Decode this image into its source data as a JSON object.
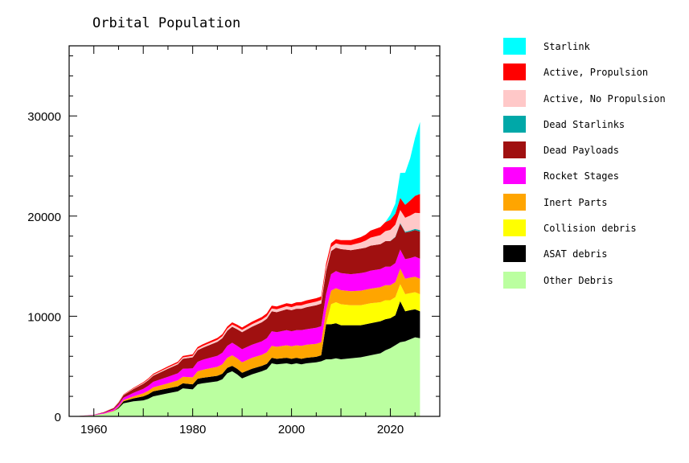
{
  "chart_data": {
    "type": "area",
    "title": "Orbital Population",
    "xlabel": "",
    "ylabel": "",
    "xlim": [
      1955,
      2030
    ],
    "ylim": [
      0,
      37000
    ],
    "x_ticks": [
      "1960",
      "1980",
      "2000",
      "2020"
    ],
    "y_ticks": [
      "0",
      "10000",
      "20000",
      "30000"
    ],
    "stacked": true,
    "legend_position": "right",
    "x": [
      1957,
      1960,
      1962,
      1964,
      1965,
      1966,
      1968,
      1970,
      1971,
      1972,
      1975,
      1977,
      1978,
      1980,
      1981,
      1982,
      1985,
      1986,
      1987,
      1988,
      1989,
      1990,
      1992,
      1994,
      1995,
      1996,
      1997,
      1999,
      2000,
      2001,
      2002,
      2003,
      2005,
      2006,
      2007,
      2008,
      2009,
      2010,
      2012,
      2014,
      2015,
      2016,
      2018,
      2019,
      2020,
      2021,
      2022,
      2023,
      2024,
      2025,
      2026
    ],
    "series": [
      {
        "name": "Other Debris",
        "color": "#bbffa0",
        "values": [
          30,
          100,
          250,
          500,
          800,
          1300,
          1500,
          1600,
          1750,
          2000,
          2300,
          2500,
          2800,
          2700,
          3200,
          3300,
          3500,
          3700,
          4300,
          4500,
          4200,
          3800,
          4200,
          4500,
          4700,
          5300,
          5200,
          5300,
          5200,
          5300,
          5200,
          5300,
          5400,
          5500,
          5700,
          5700,
          5800,
          5700,
          5800,
          5900,
          6000,
          6100,
          6300,
          6600,
          6800,
          7100,
          7400,
          7500,
          7700,
          7900,
          7800
        ]
      },
      {
        "name": "ASAT debris",
        "color": "#000000",
        "values": [
          0,
          0,
          0,
          0,
          100,
          200,
          300,
          400,
          450,
          500,
          500,
          500,
          500,
          500,
          550,
          550,
          550,
          550,
          550,
          550,
          550,
          550,
          550,
          550,
          550,
          550,
          550,
          550,
          550,
          550,
          550,
          550,
          550,
          600,
          3500,
          3500,
          3500,
          3400,
          3300,
          3200,
          3200,
          3200,
          3200,
          3100,
          3000,
          3000,
          4100,
          3000,
          2900,
          2800,
          2700
        ]
      },
      {
        "name": "Collision debris",
        "color": "#ffff00",
        "values": [
          0,
          0,
          0,
          0,
          0,
          0,
          0,
          0,
          0,
          0,
          0,
          0,
          0,
          0,
          0,
          0,
          0,
          0,
          0,
          0,
          0,
          0,
          0,
          0,
          0,
          0,
          0,
          0,
          0,
          0,
          0,
          0,
          0,
          0,
          0,
          2000,
          2100,
          2100,
          2000,
          2000,
          2000,
          2000,
          1900,
          1900,
          1800,
          1800,
          1700,
          1700,
          1700,
          1700,
          1700
        ]
      },
      {
        "name": "Inert Parts",
        "color": "#ffa500",
        "values": [
          0,
          10,
          20,
          60,
          80,
          120,
          200,
          300,
          350,
          400,
          500,
          600,
          650,
          700,
          750,
          800,
          900,
          950,
          1000,
          1050,
          1050,
          1050,
          1100,
          1100,
          1150,
          1200,
          1200,
          1250,
          1250,
          1250,
          1300,
          1300,
          1300,
          1300,
          1350,
          1350,
          1400,
          1400,
          1400,
          1450,
          1450,
          1450,
          1500,
          1500,
          1500,
          1500,
          1550,
          1550,
          1550,
          1550,
          1550
        ]
      },
      {
        "name": "Rocket Stages",
        "color": "#ff00ff",
        "values": [
          5,
          40,
          80,
          150,
          200,
          250,
          350,
          450,
          500,
          550,
          650,
          700,
          800,
          900,
          950,
          1000,
          1100,
          1150,
          1200,
          1250,
          1250,
          1300,
          1300,
          1350,
          1400,
          1450,
          1450,
          1500,
          1500,
          1500,
          1550,
          1550,
          1600,
          1600,
          1650,
          1650,
          1700,
          1700,
          1700,
          1750,
          1750,
          1800,
          1800,
          1850,
          1850,
          1900,
          1900,
          1950,
          1950,
          2000,
          2000
        ]
      },
      {
        "name": "Dead Payloads",
        "color": "#a01010",
        "values": [
          3,
          20,
          60,
          120,
          180,
          250,
          380,
          500,
          550,
          600,
          800,
          900,
          1000,
          1100,
          1150,
          1200,
          1400,
          1450,
          1500,
          1600,
          1650,
          1700,
          1800,
          1900,
          1950,
          2000,
          2000,
          2100,
          2100,
          2150,
          2150,
          2200,
          2250,
          2250,
          2300,
          2300,
          2350,
          2400,
          2400,
          2450,
          2450,
          2500,
          2500,
          2550,
          2550,
          2600,
          2600,
          2650,
          2650,
          2650,
          2700
        ]
      },
      {
        "name": "Dead Starlinks",
        "color": "#00a8a8",
        "values": [
          0,
          0,
          0,
          0,
          0,
          0,
          0,
          0,
          0,
          0,
          0,
          0,
          0,
          0,
          0,
          0,
          0,
          0,
          0,
          0,
          0,
          0,
          0,
          0,
          0,
          0,
          0,
          0,
          0,
          0,
          0,
          0,
          0,
          0,
          0,
          0,
          0,
          0,
          0,
          0,
          0,
          0,
          0,
          0,
          20,
          40,
          60,
          80,
          100,
          120,
          150
        ]
      },
      {
        "name": "Active, No Propulsion",
        "color": "#ffc8c8",
        "values": [
          0,
          5,
          10,
          20,
          30,
          40,
          60,
          80,
          90,
          100,
          120,
          130,
          140,
          150,
          160,
          170,
          190,
          200,
          210,
          220,
          230,
          240,
          250,
          260,
          270,
          280,
          290,
          300,
          310,
          320,
          330,
          340,
          350,
          360,
          380,
          400,
          420,
          450,
          500,
          600,
          700,
          800,
          900,
          1000,
          1100,
          1200,
          1300,
          1400,
          1500,
          1600,
          1700
        ]
      },
      {
        "name": "Active, Propulsion",
        "color": "#ff0000",
        "values": [
          0,
          5,
          10,
          20,
          30,
          40,
          60,
          80,
          90,
          100,
          120,
          130,
          140,
          150,
          160,
          170,
          190,
          200,
          210,
          220,
          230,
          240,
          250,
          260,
          270,
          280,
          290,
          300,
          310,
          320,
          330,
          340,
          350,
          360,
          380,
          400,
          420,
          450,
          500,
          550,
          600,
          700,
          800,
          900,
          1000,
          1100,
          1200,
          1300,
          1500,
          1700,
          1900
        ]
      },
      {
        "name": "Starlink",
        "color": "#00ffff",
        "values": [
          0,
          0,
          0,
          0,
          0,
          0,
          0,
          0,
          0,
          0,
          0,
          0,
          0,
          0,
          0,
          0,
          0,
          0,
          0,
          0,
          0,
          0,
          0,
          0,
          0,
          0,
          0,
          0,
          0,
          0,
          0,
          0,
          0,
          0,
          0,
          0,
          0,
          0,
          0,
          0,
          0,
          0,
          0,
          0,
          500,
          1000,
          2500,
          3200,
          4200,
          5800,
          7200
        ]
      }
    ]
  }
}
